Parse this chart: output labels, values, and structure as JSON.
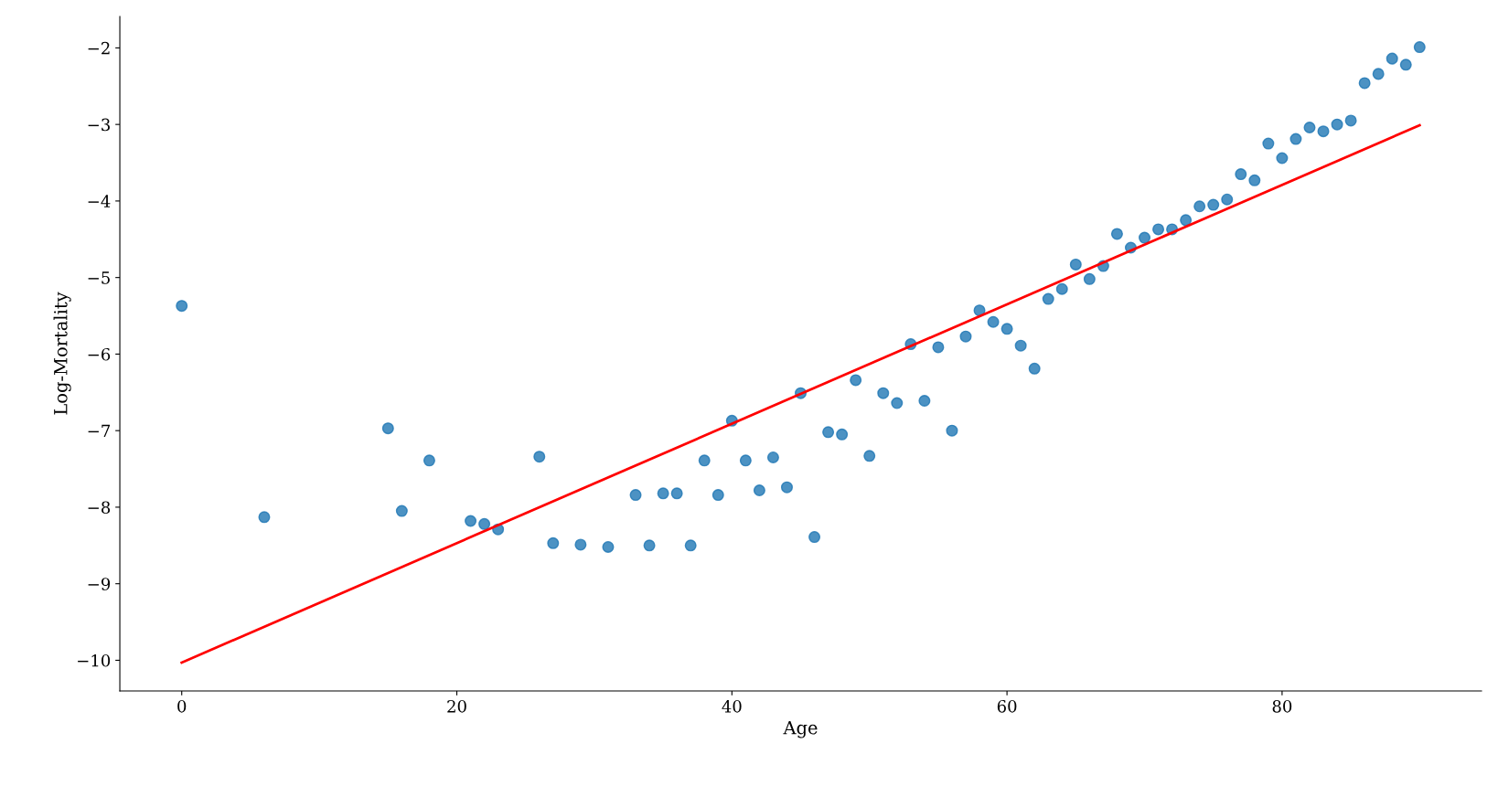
{
  "chart_data": {
    "type": "scatter",
    "xlabel": "Age",
    "ylabel": "Log-Mortality",
    "xlim": [
      -4.5,
      94.5
    ],
    "ylim": [
      -10.4,
      -1.59
    ],
    "xticks": [
      0,
      20,
      40,
      60,
      80
    ],
    "yticks": [
      -10,
      -9,
      -8,
      -7,
      -6,
      -5,
      -4,
      -3,
      -2
    ],
    "grid": false,
    "legend": false,
    "series": [
      {
        "marker": "circle",
        "color": "#1f77b4",
        "x": [
          0,
          6,
          15,
          16,
          18,
          21,
          22,
          23,
          26,
          27,
          29,
          31,
          33,
          34,
          35,
          36,
          37,
          38,
          39,
          40,
          41,
          42,
          43,
          44,
          45,
          46,
          47,
          48,
          49,
          50,
          51,
          52,
          53,
          54,
          55,
          56,
          57,
          58,
          59,
          60,
          61,
          62,
          63,
          64,
          65,
          66,
          67,
          68,
          69,
          70,
          71,
          72,
          73,
          74,
          75,
          76,
          77,
          78,
          79,
          80,
          81,
          82,
          83,
          84,
          85,
          86,
          87,
          88,
          89,
          90
        ],
        "values": [
          -5.37,
          -8.13,
          -6.97,
          -8.05,
          -7.39,
          -8.18,
          -8.22,
          -8.29,
          -7.34,
          -8.47,
          -8.49,
          -8.52,
          -7.84,
          -8.5,
          -7.82,
          -7.82,
          -8.5,
          -7.39,
          -7.84,
          -6.87,
          -7.39,
          -7.78,
          -7.35,
          -7.74,
          -6.51,
          -8.39,
          -7.02,
          -7.05,
          -6.34,
          -7.33,
          -6.51,
          -6.64,
          -5.87,
          -6.61,
          -5.91,
          -7.0,
          -5.77,
          -5.43,
          -5.58,
          -5.67,
          -5.89,
          -6.19,
          -5.28,
          -5.15,
          -4.83,
          -5.02,
          -4.85,
          -4.43,
          -4.61,
          -4.48,
          -4.37,
          -4.37,
          -4.25,
          -4.07,
          -4.05,
          -3.98,
          -3.65,
          -3.73,
          -3.25,
          -3.44,
          -3.19,
          -3.04,
          -3.09,
          -3.0,
          -2.95,
          -2.46,
          -2.34,
          -2.14,
          -2.22,
          -1.99
        ]
      },
      {
        "type": "line",
        "color": "#ff0000",
        "x": [
          0,
          90
        ],
        "values": [
          -10.03,
          -3.01
        ]
      }
    ]
  }
}
